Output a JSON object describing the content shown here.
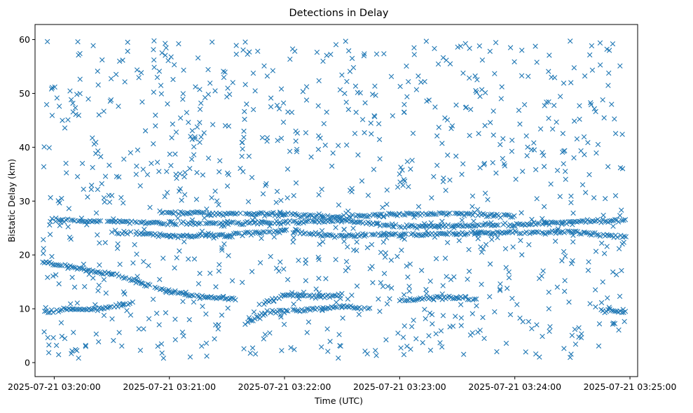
{
  "chart_data": {
    "type": "scatter",
    "title": "Detections in Delay",
    "xlabel": "Time (UTC)",
    "ylabel": "Bistatic Delay (km)",
    "marker": "x",
    "color": "#1f77b4",
    "grid": false,
    "legend": "none",
    "xlim": [
      "2025-07-21 03:19:50",
      "2025-07-21 03:25:04"
    ],
    "ylim": [
      -2.6,
      62.8
    ],
    "xticks": [
      "2025-07-21 03:20:00",
      "2025-07-21 03:21:00",
      "2025-07-21 03:22:00",
      "2025-07-21 03:23:00",
      "2025-07-21 03:24:00",
      "2025-07-21 03:25:00"
    ],
    "yticks": [
      "0",
      "10",
      "20",
      "30",
      "40",
      "50",
      "60"
    ],
    "ytick_values": [
      0,
      10,
      20,
      30,
      40,
      50,
      60
    ],
    "data_range": {
      "start": "2025-07-21 03:19:54",
      "end": "2025-07-21 03:24:58"
    },
    "tracks": [
      {
        "points": [
          [
            "2025-07-21 03:19:54",
            18.6
          ],
          [
            "2025-07-21 03:20:30",
            16.5
          ],
          [
            "2025-07-21 03:21:00",
            13.2
          ],
          [
            "2025-07-21 03:21:20",
            12.1
          ],
          [
            "2025-07-21 03:21:35",
            11.9
          ]
        ]
      },
      {
        "points": [
          [
            "2025-07-21 03:21:40",
            7.2
          ],
          [
            "2025-07-21 03:21:50",
            9.4
          ],
          [
            "2025-07-21 03:22:20",
            10.0
          ],
          [
            "2025-07-21 03:22:30",
            10.4
          ],
          [
            "2025-07-21 03:22:45",
            10.2
          ]
        ]
      },
      {
        "points": [
          [
            "2025-07-21 03:21:50",
            11.0
          ],
          [
            "2025-07-21 03:22:00",
            12.5
          ],
          [
            "2025-07-21 03:22:20",
            12.3
          ],
          [
            "2025-07-21 03:22:30",
            12.5
          ]
        ]
      },
      {
        "points": [
          [
            "2025-07-21 03:23:00",
            11.4
          ],
          [
            "2025-07-21 03:23:15",
            12.0
          ],
          [
            "2025-07-21 03:23:30",
            12.0
          ],
          [
            "2025-07-21 03:23:40",
            11.8
          ]
        ]
      },
      {
        "points": [
          [
            "2025-07-21 03:19:55",
            9.3
          ],
          [
            "2025-07-21 03:20:10",
            10.0
          ],
          [
            "2025-07-21 03:20:25",
            10.0
          ],
          [
            "2025-07-21 03:20:40",
            11.0
          ]
        ]
      },
      {
        "points": [
          [
            "2025-07-21 03:24:45",
            9.8
          ],
          [
            "2025-07-21 03:24:58",
            9.5
          ]
        ]
      },
      {
        "points": [
          [
            "2025-07-21 03:19:58",
            26.5
          ],
          [
            "2025-07-21 03:21:00",
            25.9
          ],
          [
            "2025-07-21 03:22:00",
            26.0
          ],
          [
            "2025-07-21 03:22:30",
            26.4
          ],
          [
            "2025-07-21 03:23:00",
            25.3
          ],
          [
            "2025-07-21 03:24:00",
            25.6
          ],
          [
            "2025-07-21 03:24:58",
            26.5
          ]
        ]
      },
      {
        "points": [
          [
            "2025-07-21 03:20:30",
            24.2
          ],
          [
            "2025-07-21 03:21:00",
            23.5
          ],
          [
            "2025-07-21 03:21:30",
            23.6
          ],
          [
            "2025-07-21 03:22:00",
            24.5
          ],
          [
            "2025-07-21 03:22:30",
            23.5
          ],
          [
            "2025-07-21 03:23:30",
            24.0
          ],
          [
            "2025-07-21 03:24:30",
            24.3
          ],
          [
            "2025-07-21 03:24:58",
            23.2
          ]
        ]
      },
      {
        "points": [
          [
            "2025-07-21 03:20:55",
            28.0
          ],
          [
            "2025-07-21 03:21:10",
            27.7
          ],
          [
            "2025-07-21 03:22:00",
            27.5
          ],
          [
            "2025-07-21 03:22:30",
            27.0
          ],
          [
            "2025-07-21 03:23:00",
            27.6
          ],
          [
            "2025-07-21 03:23:30",
            27.7
          ],
          [
            "2025-07-21 03:24:00",
            27.2
          ]
        ]
      }
    ],
    "noise": {
      "count": 1000,
      "y_range": [
        0.8,
        59.8
      ]
    }
  }
}
